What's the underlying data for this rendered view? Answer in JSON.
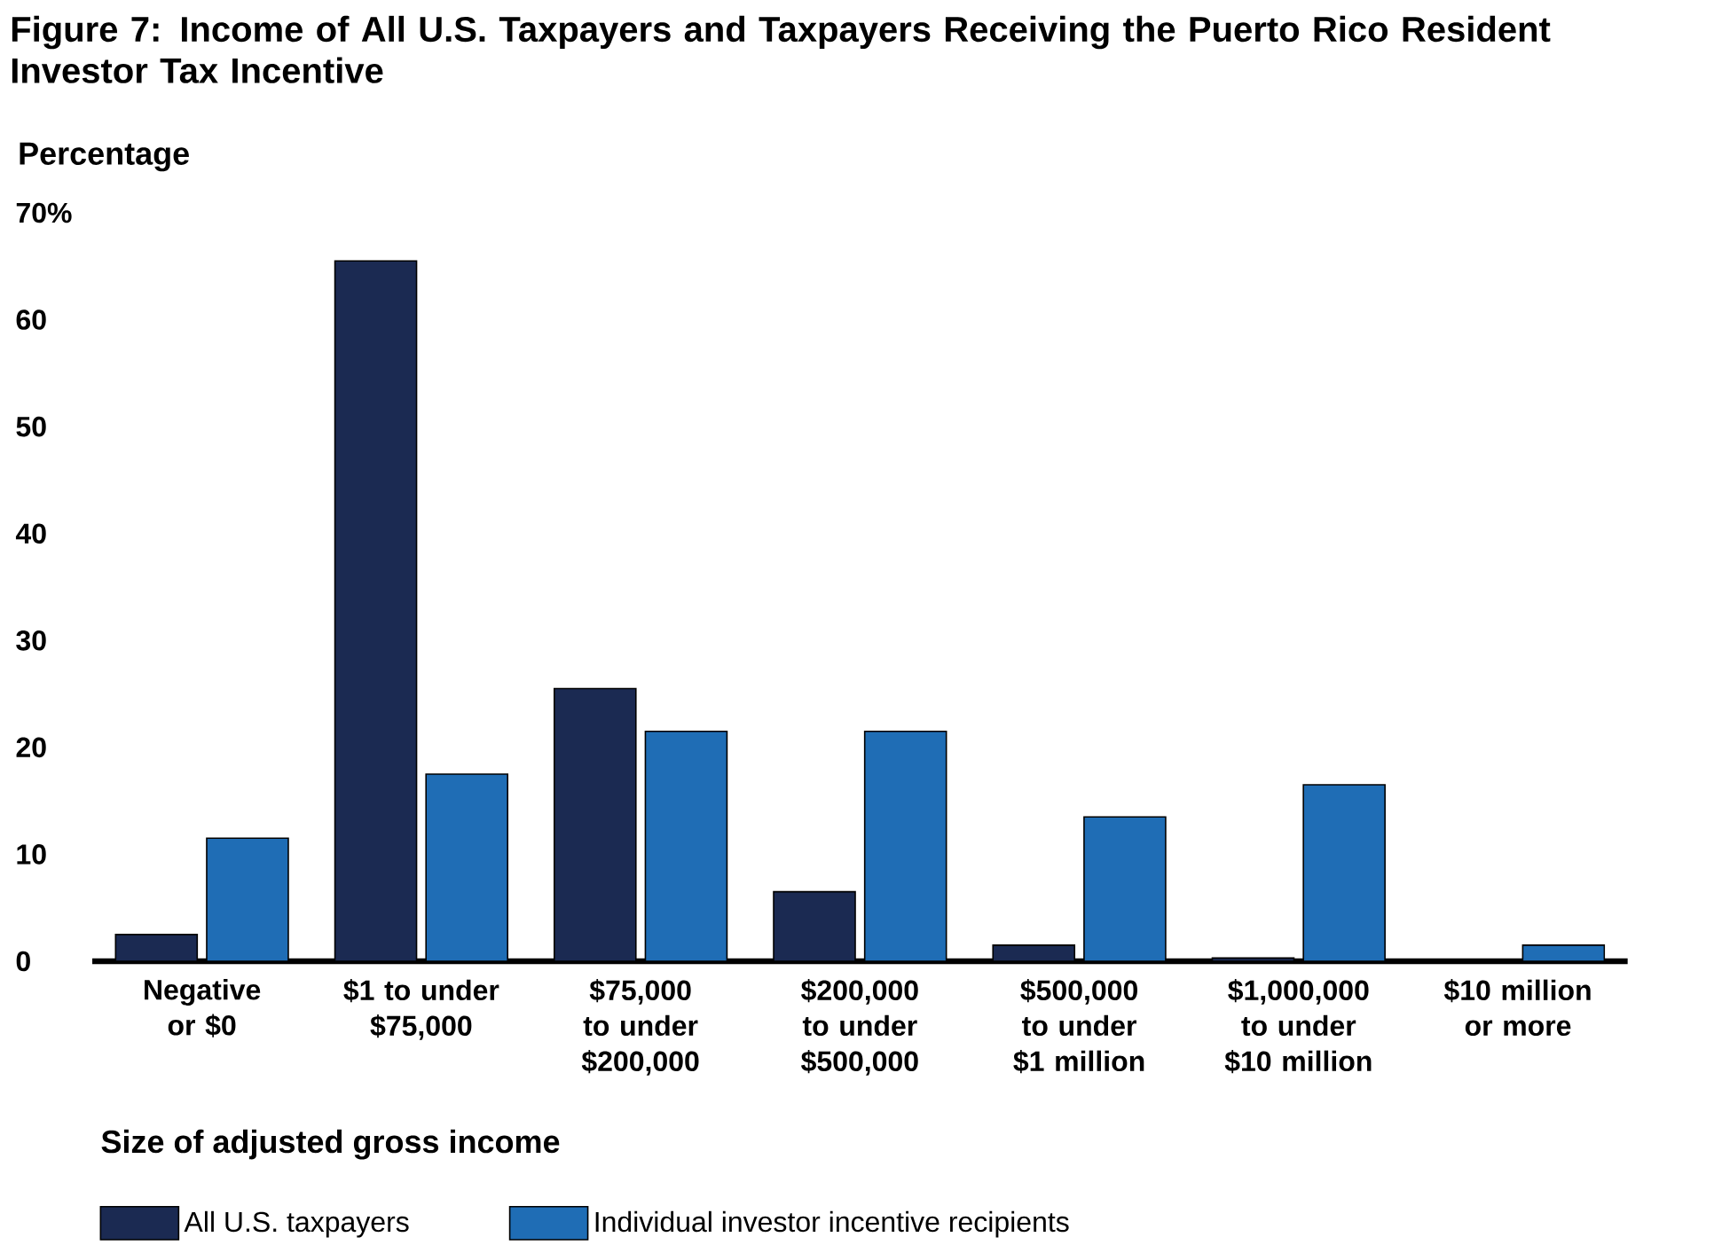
{
  "chart_data": {
    "type": "bar",
    "title": "Figure 7: Income of All U.S. Taxpayers and Taxpayers Receiving the Puerto Rico Resident Investor Tax Incentive",
    "ylabel": "Percentage",
    "xlabel": "Size of adjusted gross income",
    "categories": [
      "Negative or $0",
      "$1 to under $75,000",
      "$75,000 to under $200,000",
      "$200,000 to under $500,000",
      "$500,000 to under $1 million",
      "$1,000,000 to under $10 million",
      "$10 million or more"
    ],
    "series": [
      {
        "name": "All U.S. taxpayers",
        "color": "#1b2a52",
        "values": [
          2.5,
          65.5,
          25.5,
          6.5,
          1.5,
          0.3,
          0.1
        ]
      },
      {
        "name": "Individual investor incentive recipients",
        "color": "#1f6db5",
        "values": [
          11.5,
          17.5,
          21.5,
          21.5,
          13.5,
          16.5,
          1.5
        ]
      }
    ],
    "ylim": [
      0,
      70
    ],
    "yticks": [
      0,
      10,
      20,
      30,
      40,
      50,
      60,
      {
        "value": 70,
        "label": "70%"
      }
    ],
    "grid": false,
    "legend": "bottom"
  }
}
